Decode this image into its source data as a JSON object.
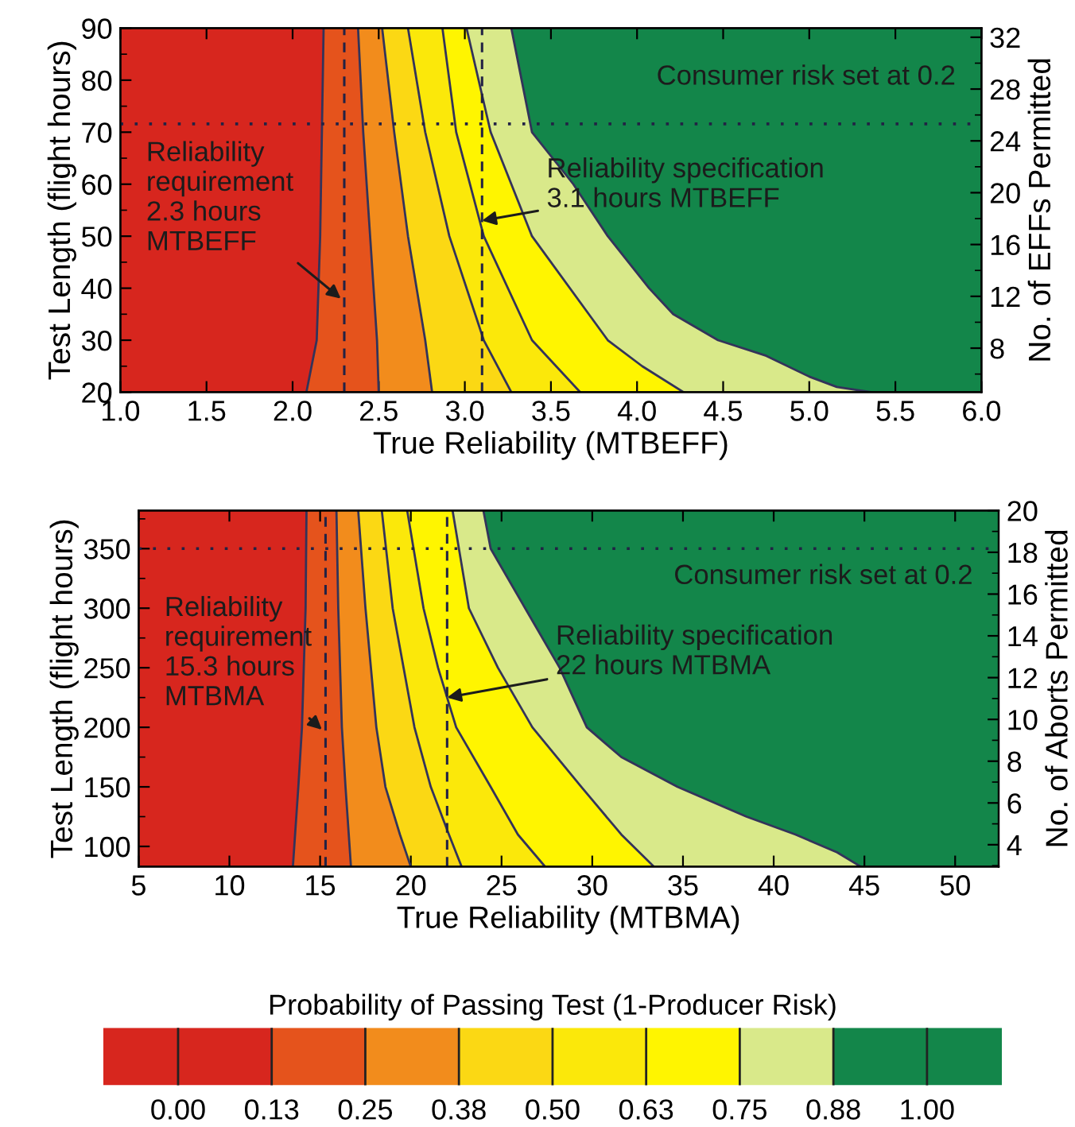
{
  "chart_data": [
    {
      "type": "area",
      "orientation": "horizontal",
      "xlabel": "True Reliability (MTBEFF)",
      "ylabel": "Test Length (flight hours)",
      "y2label": "No. of EFFs Permitted",
      "xlim": [
        1.0,
        6.0
      ],
      "xticks": [
        {
          "value": 1.0,
          "label": "1.0"
        },
        {
          "value": 1.5,
          "label": "1.5"
        },
        {
          "value": 2.0,
          "label": "2.0"
        },
        {
          "value": 2.5,
          "label": "2.5"
        },
        {
          "value": 3.0,
          "label": "3.0"
        },
        {
          "value": 3.5,
          "label": "3.5"
        },
        {
          "value": 4.0,
          "label": "4.0"
        },
        {
          "value": 4.5,
          "label": "4.5"
        },
        {
          "value": 5.0,
          "label": "5.0"
        },
        {
          "value": 5.5,
          "label": "5.5"
        },
        {
          "value": 6.0,
          "label": "6.0"
        }
      ],
      "ylim": [
        20,
        90
      ],
      "yticks": [
        20,
        30,
        40,
        50,
        60,
        70,
        80,
        90
      ],
      "y2lim": [
        4.6,
        32.7
      ],
      "y2ticks": [
        8,
        12,
        16,
        20,
        24,
        28,
        32
      ],
      "series": [
        {
          "color": "#d7261e",
          "values": [
            2.08,
            2.14,
            2.16,
            2.17,
            2.18
          ],
          "x": [
            20,
            30,
            50,
            70,
            90
          ]
        },
        {
          "color": "#e5531c",
          "values": [
            2.5,
            2.49,
            2.45,
            2.41,
            2.38
          ],
          "x": [
            20,
            30,
            50,
            70,
            90
          ]
        },
        {
          "color": "#f28c1c",
          "values": [
            2.81,
            2.77,
            2.67,
            2.59,
            2.52
          ],
          "x": [
            20,
            30,
            50,
            70,
            90
          ]
        },
        {
          "color": "#fbd814",
          "values": [
            3.27,
            3.11,
            2.91,
            2.77,
            2.67
          ],
          "x": [
            20,
            30,
            50,
            70,
            90
          ]
        },
        {
          "color": "#fbe80a",
          "values": [
            3.67,
            3.39,
            3.11,
            2.95,
            2.87
          ],
          "x": [
            20,
            30,
            50,
            70,
            90
          ]
        },
        {
          "color": "#fff500",
          "values": [
            4.27,
            4.03,
            3.83,
            3.39,
            3.15,
            3.01
          ],
          "x": [
            20,
            25,
            30,
            50,
            70,
            90
          ]
        },
        {
          "color": "#d9e98a",
          "values": [
            5.36,
            5.16,
            5.0,
            4.75,
            4.47,
            4.21,
            4.07,
            3.83,
            3.63,
            3.39,
            3.33,
            3.27
          ],
          "x": [
            20,
            21,
            23,
            27,
            30,
            35,
            40,
            50,
            60,
            70,
            80,
            90
          ]
        }
      ],
      "bands": [
        {
          "axis": "x",
          "from": 1.0,
          "to": 6.0,
          "color": "#13864a"
        }
      ],
      "ref_lines": [
        {
          "axis": "y",
          "value": 71.6,
          "label": "Consumer risk set at 0.2",
          "line_style": "dotted"
        },
        {
          "axis": "x",
          "value": 2.3,
          "line_style": "dashed"
        },
        {
          "axis": "x",
          "value": 3.1,
          "line_style": "dashed"
        }
      ],
      "annotations": [
        {
          "text": "Reliability\nrequirement\n2.3 hours\nMTBEFF",
          "x": 2.28,
          "y": 38
        },
        {
          "text": "Reliability specification\n3.1 hours MTBEFF",
          "x": 3.1,
          "y": 53
        }
      ],
      "legend": false,
      "grid": false
    },
    {
      "type": "area",
      "orientation": "horizontal",
      "xlabel": "True Reliability (MTBMA)",
      "ylabel": "Test Length (flight hours)",
      "y2label": "No. of Aborts Permitted",
      "xlim": [
        5,
        52.4
      ],
      "xticks": [
        5,
        10,
        15,
        20,
        25,
        30,
        35,
        40,
        45,
        50
      ],
      "ylim": [
        83,
        382
      ],
      "yticks": [
        100,
        150,
        200,
        250,
        300,
        350
      ],
      "y2lim": [
        2.95,
        20.0
      ],
      "y2ticks": [
        4,
        6,
        8,
        10,
        12,
        14,
        16,
        18,
        20
      ],
      "series": [
        {
          "color": "#d7261e",
          "values": [
            13.5,
            13.8,
            14.0,
            14.2,
            14.25
          ],
          "x": [
            83,
            150,
            200,
            300,
            382
          ]
        },
        {
          "color": "#e5531c",
          "values": [
            16.7,
            16.4,
            16.2,
            16.0,
            15.9
          ],
          "x": [
            83,
            150,
            200,
            300,
            382
          ]
        },
        {
          "color": "#f28c1c",
          "values": [
            20.0,
            19.4,
            18.6,
            18.1,
            17.5,
            17.1
          ],
          "x": [
            83,
            110,
            150,
            200,
            300,
            382
          ]
        },
        {
          "color": "#fbd814",
          "values": [
            22.8,
            22.1,
            21.1,
            20.2,
            19.0,
            18.4
          ],
          "x": [
            83,
            110,
            150,
            200,
            300,
            382
          ]
        },
        {
          "color": "#fbe80a",
          "values": [
            27.4,
            25.9,
            24.4,
            22.5,
            21.5,
            20.7,
            19.8
          ],
          "x": [
            83,
            110,
            150,
            200,
            250,
            300,
            382
          ]
        },
        {
          "color": "#fff500",
          "values": [
            33.4,
            31.6,
            29.4,
            26.7,
            24.8,
            23.2,
            22.3
          ],
          "x": [
            83,
            110,
            150,
            200,
            250,
            300,
            382
          ]
        },
        {
          "color": "#d9e98a",
          "values": [
            44.8,
            43.5,
            41.2,
            38.5,
            34.7,
            31.6,
            29.7,
            28.2,
            26.3,
            24.4,
            24.0
          ],
          "x": [
            83,
            95,
            110,
            125,
            150,
            175,
            200,
            250,
            300,
            350,
            382
          ]
        }
      ],
      "bands": [
        {
          "axis": "x",
          "from": 5,
          "to": 52.4,
          "color": "#13864a"
        }
      ],
      "ref_lines": [
        {
          "axis": "y",
          "value": 350,
          "label": "Consumer risk set at 0.2",
          "line_style": "dotted"
        },
        {
          "axis": "x",
          "value": 15.3,
          "line_style": "dashed"
        },
        {
          "axis": "x",
          "value": 22,
          "line_style": "dashed"
        }
      ],
      "annotations": [
        {
          "text": "Reliability\nrequirement\n15.3 hours\nMTBMA",
          "x": 15.1,
          "y": 198
        },
        {
          "text": "Reliability specification\n22 hours MTBMA",
          "x": 22,
          "y": 225
        }
      ],
      "clabel": "Probability of Passing Test (1-Producer Risk)",
      "clim": [
        -0.1,
        1.1
      ],
      "cticks": [
        {
          "value": 0,
          "label": "0.00"
        },
        {
          "value": 0.125,
          "label": "0.13"
        },
        {
          "value": 0.25,
          "label": "0.25"
        },
        {
          "value": 0.375,
          "label": "0.38"
        },
        {
          "value": 0.5,
          "label": "0.50"
        },
        {
          "value": 0.625,
          "label": "0.63"
        },
        {
          "value": 0.75,
          "label": "0.75"
        },
        {
          "value": 0.875,
          "label": "0.88"
        },
        {
          "value": 1.0,
          "label": "1.00"
        }
      ],
      "legend": false,
      "grid": false
    }
  ]
}
